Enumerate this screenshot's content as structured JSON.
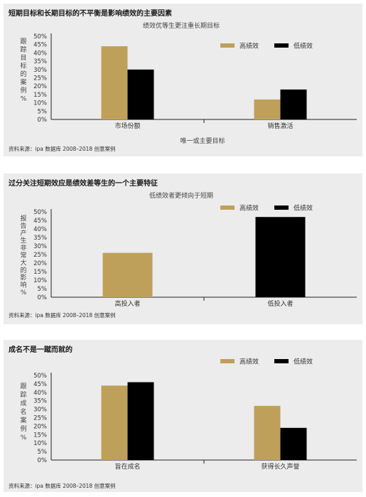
{
  "colors": {
    "high": "#bfa05a",
    "low": "#000000"
  },
  "chart_data": [
    {
      "type": "bar",
      "title": "短期目标和长期目标的不平衡是影响绩效的主要因素",
      "subtitle": "绩效优等生更注重长期目标",
      "xlabel": "唯一或主要目标",
      "ylabel": "跟踪目标的案例 %",
      "categories": [
        "市场份额",
        "销售激活"
      ],
      "series": [
        {
          "name": "高绩效",
          "values": [
            44,
            12
          ]
        },
        {
          "name": "低绩效",
          "values": [
            30,
            18
          ]
        }
      ],
      "ylim": [
        0,
        50
      ],
      "yticks": [
        "0%",
        "5%",
        "10%",
        "15%",
        "20%",
        "25%",
        "30%",
        "35%",
        "40%",
        "45%",
        "50%"
      ],
      "legend": "top-right",
      "source": "资料来源：ipa 数据库 2008–2018 创意案例"
    },
    {
      "type": "bar",
      "title": "过分关注短期效应是绩效差等生的一个主要特征",
      "subtitle": "低绩效者更倾向于短期",
      "xlabel": "",
      "ylabel": "报告产生非常大的影响 %",
      "categories": [
        "高投入者",
        "低投入者"
      ],
      "series": [
        {
          "name": "高绩效",
          "values": [
            26,
            null
          ]
        },
        {
          "name": "低绩效",
          "values": [
            null,
            47
          ]
        }
      ],
      "ylim": [
        0,
        50
      ],
      "yticks": [
        "0%",
        "5%",
        "10%",
        "15%",
        "20%",
        "25%",
        "30%",
        "35%",
        "40%",
        "45%",
        "50%"
      ],
      "legend": "top-right",
      "source": "资料来源：ipa 数据库 2008–2018 创意案例"
    },
    {
      "type": "bar",
      "title": "成名不是一蹴而就的",
      "subtitle": "",
      "xlabel": "",
      "ylabel": "跟踪成名案例 %",
      "categories": [
        "旨在成名",
        "获得长久声誉"
      ],
      "series": [
        {
          "name": "高绩效",
          "values": [
            44,
            32
          ]
        },
        {
          "name": "低绩效",
          "values": [
            46,
            19
          ]
        }
      ],
      "ylim": [
        0,
        50
      ],
      "yticks": [
        "0%",
        "5%",
        "10%",
        "15%",
        "20%",
        "25%",
        "30%",
        "35%",
        "40%",
        "45%",
        "50%"
      ],
      "legend": "top-right",
      "source": "资料来源：ipa 数据库 2008–2018 创意案例"
    }
  ]
}
